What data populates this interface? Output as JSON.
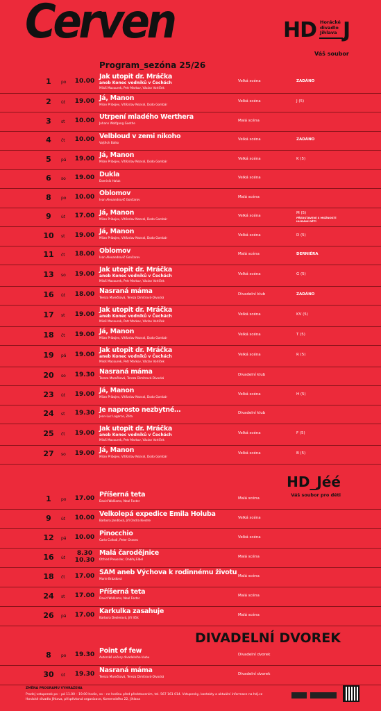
{
  "header": {
    "title": "Červen",
    "subtitle": "Program_sezóna 25/26",
    "logo": {
      "left": "HD",
      "name": [
        "Horácké",
        "divadlo",
        "Jihlava"
      ],
      "right": "J",
      "tagline": "Váš soubor"
    }
  },
  "program": {
    "rows": [
      {
        "day": "1",
        "weekday": "po",
        "time": "10.00",
        "title": "Jak utopit dr. Mráčka",
        "subtitle": "aneb Konec vodníků v Čechách",
        "authors": "Miloš Macourek, Petr Markov, Václav Vorlíček",
        "venue": "Velká scéna",
        "note": "ZADÁNO"
      },
      {
        "day": "2",
        "weekday": "út",
        "time": "19.00",
        "title": "Já, Manon",
        "authors": "Milan Pribojev, Vítězslav Nezval, Dodo Gombár",
        "venue": "Velká scéna",
        "note": "J (5)"
      },
      {
        "day": "3",
        "weekday": "st",
        "time": "10.00",
        "title": "Utrpení mladého Werthera",
        "authors": "Johann Wolfgang Goethe",
        "venue": "Malá scéna"
      },
      {
        "day": "4",
        "weekday": "čt",
        "time": "10.00",
        "title": "Velbloud v zemi nikoho",
        "authors": "Vojtěch Balko",
        "venue": "Velká scéna",
        "note": "ZADÁNO"
      },
      {
        "day": "5",
        "weekday": "pá",
        "time": "19.00",
        "title": "Já, Manon",
        "authors": "Milan Pribojev, Vítězslav Nezval, Dodo Gombár",
        "venue": "Velká scéna",
        "note": "K (5)"
      },
      {
        "day": "6",
        "weekday": "so",
        "time": "19.00",
        "title": "Dukla",
        "authors": "Dominik Haluk",
        "venue": "Velká scéna"
      },
      {
        "day": "8",
        "weekday": "po",
        "time": "10.00",
        "title": "Oblomov",
        "authors": "Ivan Alexandrovič Gončarov",
        "venue": "Malá scéna"
      },
      {
        "day": "9",
        "weekday": "út",
        "time": "17.00",
        "title": "Já, Manon",
        "authors": "Milan Pribojev, Vítězslav Nezval, Dodo Gombár",
        "venue": "Velká scéna",
        "note": "M (5)",
        "note2": "PŘEDSTAVENÍ S MOŽNOSTÍ HLÍDÁNÍ DĚTÍ"
      },
      {
        "day": "10",
        "weekday": "st",
        "time": "19.00",
        "title": "Já, Manon",
        "authors": "Milan Pribojev, Vítězslav Nezval, Dodo Gombár",
        "venue": "Velká scéna",
        "note": "D (5)"
      },
      {
        "day": "11",
        "weekday": "čt",
        "time": "18.00",
        "title": "Oblomov",
        "authors": "Ivan Alexandrovič Gončarov",
        "venue": "Malá scéna",
        "note": "DERNIÉRA"
      },
      {
        "day": "13",
        "weekday": "so",
        "time": "19.00",
        "title": "Jak utopit dr. Mráčka",
        "subtitle": "aneb Konec vodníků v Čechách",
        "authors": "Miloš Macourek, Petr Markov, Václav Vorlíček",
        "venue": "Velká scéna",
        "note": "G (5)"
      },
      {
        "day": "16",
        "weekday": "út",
        "time": "18.00",
        "title": "Nasraná máma",
        "authors": "Tereza Marečková, Tereza Dimitrová-Divocká",
        "venue": "Divadelní klub",
        "note": "ZADÁNO"
      },
      {
        "day": "17",
        "weekday": "st",
        "time": "19.00",
        "title": "Jak utopit dr. Mráčka",
        "subtitle": "aneb Konec vodníků v Čechách",
        "authors": "Miloš Macourek, Petr Markov, Václav Vorlíček",
        "venue": "Velká scéna",
        "note": "KV (5)"
      },
      {
        "day": "18",
        "weekday": "čt",
        "time": "19.00",
        "title": "Já, Manon",
        "authors": "Milan Pribojev, Vítězslav Nezval, Dodo Gombár",
        "venue": "Velká scéna",
        "note": "T (5)"
      },
      {
        "day": "19",
        "weekday": "pá",
        "time": "19.00",
        "title": "Jak utopit dr. Mráčka",
        "subtitle": "aneb Konec vodníků v Čechách",
        "authors": "Miloš Macourek, Petr Markov, Václav Vorlíček",
        "venue": "Velká scéna",
        "note": "R (5)"
      },
      {
        "day": "20",
        "weekday": "so",
        "time": "19.30",
        "title": "Nasraná máma",
        "authors": "Tereza Marečková, Tereza Dimitrová-Divocká",
        "venue": "Divadelní klub"
      },
      {
        "day": "23",
        "weekday": "út",
        "time": "19.00",
        "title": "Já, Manon",
        "authors": "Milan Pribojev, Vítězslav Nezval, Dodo Gombár",
        "venue": "Velká scéna",
        "note": "H (5)"
      },
      {
        "day": "24",
        "weekday": "st",
        "time": "19.30",
        "title": "Je naprosto nezbytné…",
        "authors": "Jean-Luc Lagarce, Zéta",
        "venue": "Divadelní klub"
      },
      {
        "day": "25",
        "weekday": "čt",
        "time": "19.00",
        "title": "Jak utopit dr. Mráčka",
        "subtitle": "aneb Konec vodníků v Čechách",
        "authors": "Miloš Macourek, Petr Markov, Václav Vorlíček",
        "venue": "Velká scéna",
        "note": "F (5)"
      },
      {
        "day": "27",
        "weekday": "so",
        "time": "19.00",
        "title": "Já, Manon",
        "authors": "Milan Pribojev, Vítězslav Nezval, Dodo Gombár",
        "venue": "Velká scéna",
        "note": "B (5)"
      }
    ]
  },
  "kids": {
    "heading": "HD_Jéé",
    "tagline": "Váš soubor pro děti",
    "rows": [
      {
        "day": "1",
        "weekday": "po",
        "time": "17.00",
        "title": "Příšerná teta",
        "authors": "David Walliams, Neal Foster",
        "venue": "Malá scéna"
      },
      {
        "day": "9",
        "weekday": "út",
        "time": "10.00",
        "title": "Velkolepá expedice Emila Holuba",
        "authors": "Barbora Jandlová, Jiří Ondra Kiedrle",
        "venue": "Velká scéna"
      },
      {
        "day": "12",
        "weekday": "pá",
        "time": "10.00",
        "title": "Pinocchio",
        "authors": "Carlo Collodi, Peter Oravec",
        "venue": "Velká scéna"
      },
      {
        "day": "16",
        "weekday": "út",
        "time": "8.30",
        "time2": "10.30",
        "title": "Malá čarodějnice",
        "authors": "Otfried Preussler, Ondřej Elbel",
        "venue": "Malá scéna"
      },
      {
        "day": "18",
        "weekday": "čt",
        "time": "17.00",
        "title": "SAM aneb Výchova k rodinnému životu",
        "authors": "Marie Brázdová",
        "venue": "Malá scéna"
      },
      {
        "day": "24",
        "weekday": "st",
        "time": "17.00",
        "title": "Příšerná teta",
        "authors": "David Walliams, Neal Foster",
        "venue": "Malá scéna"
      },
      {
        "day": "26",
        "weekday": "pá",
        "time": "17.00",
        "title": "Karkulka zasahuje",
        "authors": "Barbora Dexlerová, Jiří Ilčík",
        "venue": "Malá scéna"
      }
    ]
  },
  "dvorek": {
    "heading": "DIVADELNÍ DVOREK",
    "rows": [
      {
        "day": "8",
        "weekday": "po",
        "time": "19.30",
        "title": "Point of few",
        "authors": "Autorské večery divadelního klubu",
        "venue": "Divadelní dvorek"
      },
      {
        "day": "30",
        "weekday": "út",
        "time": "19.30",
        "title": "Nasraná máma",
        "authors": "Tereza Marečková, Tereza Dimitrová-Divocká",
        "venue": "Divadelní dvorek"
      }
    ]
  },
  "footer": {
    "notice": "ZMĚNA PROGRAMU VYHRAZENA",
    "lines": [
      "Prodej vstupenek po – pá 11.00 – 19.00 hodin, so – ne hodinu před představením, tel. 567 161 014. Vstupenky, kontakty a aktuální informace na hdj.cz",
      "Horácké divadlo Jihlava, příspěvková organizace, Komenského 22, Jihlava"
    ]
  }
}
